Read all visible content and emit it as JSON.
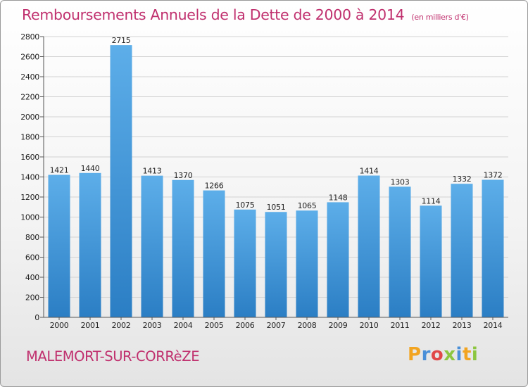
{
  "header": {
    "title": "Remboursements Annuels de la Dette de 2000 à 2014",
    "unit": "(en milliers d'€)"
  },
  "footer": {
    "commune": "MALEMORT-SUR-CORRèZE",
    "logo": "Proxiti"
  },
  "colors": {
    "title": "#c0306e",
    "bar_top": "#5daee9",
    "bar_bottom": "#2b7ec4",
    "logo_letters": [
      "#f2a420",
      "#4a8fd8",
      "#e04848",
      "#8cc63f",
      "#4a8fd8",
      "#f2a420",
      "#8cc63f"
    ]
  },
  "chart_data": {
    "type": "bar",
    "title": "Remboursements Annuels de la Dette de 2000 à 2014",
    "xlabel": "",
    "ylabel": "",
    "categories": [
      "2000",
      "2001",
      "2002",
      "2003",
      "2004",
      "2005",
      "2006",
      "2007",
      "2008",
      "2009",
      "2010",
      "2011",
      "2012",
      "2013",
      "2014"
    ],
    "values": [
      1421,
      1440,
      2715,
      1413,
      1370,
      1266,
      1075,
      1051,
      1065,
      1148,
      1414,
      1303,
      1114,
      1332,
      1372
    ],
    "yticks": [
      0,
      200,
      400,
      600,
      800,
      1000,
      1200,
      1400,
      1600,
      1800,
      2000,
      2200,
      2400,
      2600,
      2800
    ],
    "ylim": [
      0,
      2800
    ],
    "grid": true,
    "data_labels": true
  }
}
